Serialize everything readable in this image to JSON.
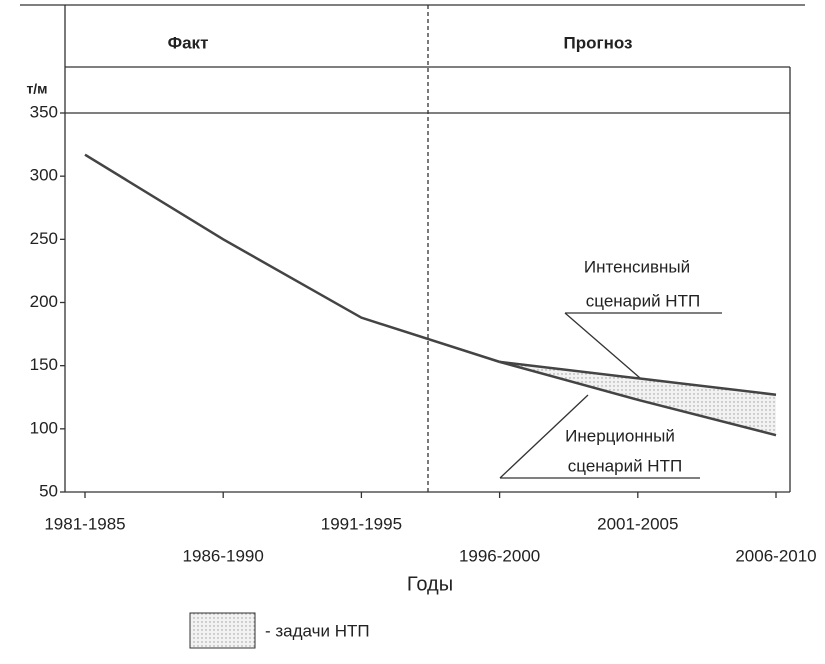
{
  "chart_data": {
    "type": "line",
    "ylabel": "т/м",
    "xlabel": "Годы",
    "sections": [
      "Факт",
      "Прогноз"
    ],
    "categories": [
      "1981-1985",
      "1986-1990",
      "1991-1995",
      "1996-2000",
      "2001-2005",
      "2006-2010"
    ],
    "series": [
      {
        "color": "#444444",
        "values": [
          317,
          250,
          188,
          153,
          null,
          null
        ]
      },
      {
        "color": "#444444",
        "values": [
          null,
          null,
          null,
          153,
          140,
          127
        ]
      },
      {
        "color": "#444444",
        "values": [
          null,
          null,
          null,
          153,
          123,
          95
        ]
      }
    ],
    "annotations": [
      [
        "Интенсивный",
        "сценарий НТП"
      ],
      [
        "Инерционный",
        "сценарий НТП"
      ]
    ],
    "legend": "- задачи НТП",
    "ylim": [
      50,
      350
    ],
    "yticks": [
      50,
      100,
      150,
      200,
      250,
      300,
      350
    ]
  }
}
